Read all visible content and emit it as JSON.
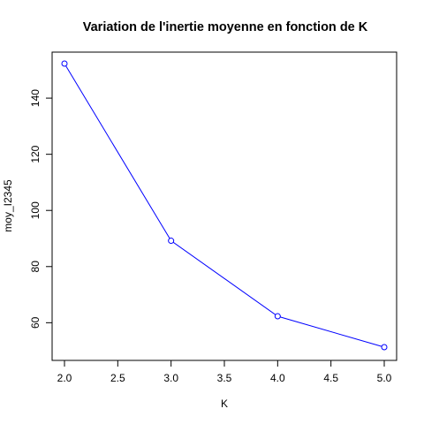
{
  "chart_data": {
    "type": "line",
    "title": "Variation de l'inertie moyenne en fonction de K",
    "xlabel": "K",
    "ylabel": "moy_I2345",
    "x": [
      2,
      3,
      4,
      5
    ],
    "series": [
      {
        "values": [
          152.3,
          89.2,
          62.3,
          51.3
        ],
        "color": "#0000ff",
        "marker": "open-circle"
      }
    ],
    "xlim": [
      2,
      5
    ],
    "ylim": [
      51.3,
      152.3
    ],
    "x_ticks": [
      2.0,
      2.5,
      3.0,
      3.5,
      4.0,
      4.5,
      5.0
    ],
    "x_tick_labels": [
      "2.0",
      "2.5",
      "3.0",
      "3.5",
      "4.0",
      "4.5",
      "5.0"
    ],
    "y_ticks": [
      60,
      80,
      100,
      120,
      140
    ],
    "y_tick_labels": [
      "60",
      "80",
      "100",
      "120",
      "140"
    ],
    "grid": false,
    "box": true
  }
}
